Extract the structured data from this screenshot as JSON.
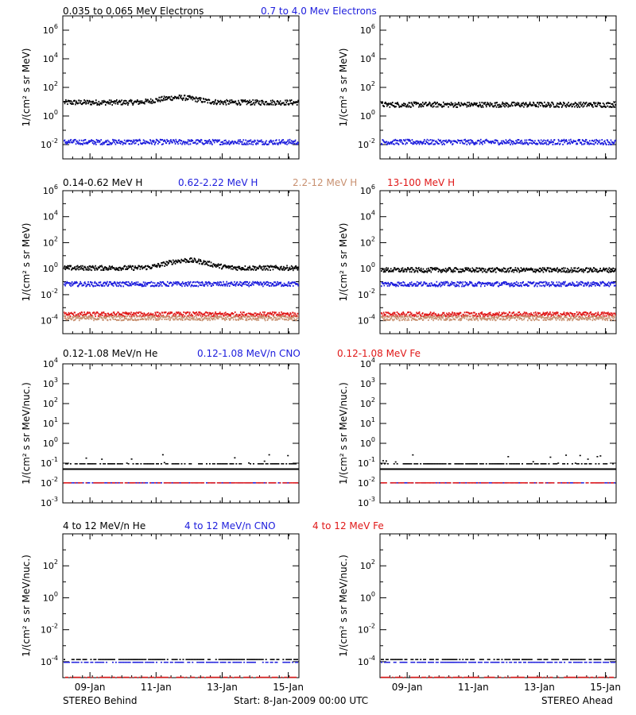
{
  "footer": {
    "left": "STEREO Behind",
    "center": "Start:  8-Jan-2009 00:00 UTC",
    "right": "STEREO Ahead"
  },
  "x_ticks": [
    "09-Jan",
    "11-Jan",
    "13-Jan",
    "15-Jan"
  ],
  "colors": {
    "black": "#000000",
    "blue": "#1c1cdc",
    "tan": "#c89070",
    "red": "#e01818"
  },
  "chart_data": [
    {
      "type": "scatter",
      "row": 1,
      "legend": [
        {
          "label": "0.035 to 0.065 MeV Electrons",
          "color": "#000000"
        },
        {
          "label": "0.7 to 4.0 Mev Electrons",
          "color": "#1c1cdc"
        }
      ],
      "ylabel": "1/(cm² s sr MeV)",
      "y_scale": "log",
      "ylim_exp": [
        -3,
        7
      ],
      "ytick_exponents": [
        -2,
        0,
        2,
        4,
        6
      ],
      "xlim_days": [
        0,
        8
      ],
      "panels": [
        {
          "spacecraft": "STEREO Behind",
          "series": [
            {
              "name": "0.035 to 0.065 MeV Electrons",
              "color": "#000000",
              "level": 10,
              "bump": {
                "center_day": 3.9,
                "peak": 22
              }
            },
            {
              "name": "0.7 to 4.0 Mev Electrons",
              "color": "#1c1cdc",
              "level": 0.017
            }
          ]
        },
        {
          "spacecraft": "STEREO Ahead",
          "series": [
            {
              "name": "0.035 to 0.065 MeV Electrons",
              "color": "#000000",
              "level": 7
            },
            {
              "name": "0.7 to 4.0 Mev Electrons",
              "color": "#1c1cdc",
              "level": 0.017
            }
          ]
        }
      ]
    },
    {
      "type": "scatter",
      "row": 2,
      "legend": [
        {
          "label": "0.14-0.62 MeV H",
          "color": "#000000"
        },
        {
          "label": "0.62-2.22 MeV H",
          "color": "#1c1cdc"
        },
        {
          "label": "2.2-12 MeV H",
          "color": "#c89070"
        },
        {
          "label": "13-100 MeV H",
          "color": "#e01818"
        }
      ],
      "ylabel": "1/(cm² s sr MeV)",
      "y_scale": "log",
      "ylim_exp": [
        -5,
        6
      ],
      "ytick_exponents": [
        -4,
        -2,
        0,
        2,
        4,
        6
      ],
      "xlim_days": [
        0,
        8
      ],
      "panels": [
        {
          "spacecraft": "STEREO Behind",
          "series": [
            {
              "name": "0.14-0.62 MeV H",
              "color": "#000000",
              "level": 1.3,
              "bump": {
                "center_day": 4.2,
                "peak": 5
              }
            },
            {
              "name": "0.62-2.22 MeV H",
              "color": "#1c1cdc",
              "level": 0.075
            },
            {
              "name": "13-100 MeV H",
              "color": "#e01818",
              "level": 0.00035
            },
            {
              "name": "2.2-12 MeV H",
              "color": "#c89070",
              "level": 0.00018
            }
          ]
        },
        {
          "spacecraft": "STEREO Ahead",
          "series": [
            {
              "name": "0.14-0.62 MeV H",
              "color": "#000000",
              "level": 0.9
            },
            {
              "name": "0.62-2.22 MeV H",
              "color": "#1c1cdc",
              "level": 0.075
            },
            {
              "name": "13-100 MeV H",
              "color": "#e01818",
              "level": 0.00035
            },
            {
              "name": "2.2-12 MeV H",
              "color": "#c89070",
              "level": 0.00018
            }
          ]
        }
      ]
    },
    {
      "type": "scatter",
      "row": 3,
      "legend": [
        {
          "label": "0.12-1.08 MeV/n He",
          "color": "#000000"
        },
        {
          "label": "0.12-1.08 MeV/n CNO",
          "color": "#1c1cdc"
        },
        {
          "label": "0.12-1.08 MeV Fe",
          "color": "#e01818"
        }
      ],
      "ylabel": "1/(cm² s sr MeV/nuc.)",
      "y_scale": "log",
      "ylim_exp": [
        -3,
        4
      ],
      "ytick_exponents": [
        -3,
        -2,
        -1,
        0,
        1,
        2,
        3,
        4
      ],
      "xlim_days": [
        0,
        8
      ],
      "panels": [
        {
          "spacecraft": "STEREO Behind",
          "series": [
            {
              "name": "0.12-1.08 MeV/n He",
              "color": "#000000",
              "level": 0.1,
              "solid_line": 0.05
            },
            {
              "name": "0.12-1.08 MeV/n CNO",
              "color": "#1c1cdc",
              "level": 0.011
            },
            {
              "name": "0.12-1.08 MeV Fe",
              "color": "#e01818",
              "level": 0.011
            }
          ]
        },
        {
          "spacecraft": "STEREO Ahead",
          "series": [
            {
              "name": "0.12-1.08 MeV/n He",
              "color": "#000000",
              "level": 0.1,
              "solid_line": 0.05
            },
            {
              "name": "0.12-1.08 MeV/n CNO",
              "color": "#1c1cdc",
              "level": 0.011
            },
            {
              "name": "0.12-1.08 MeV Fe",
              "color": "#e01818",
              "level": 0.011
            }
          ]
        }
      ]
    },
    {
      "type": "scatter",
      "row": 4,
      "legend": [
        {
          "label": "4 to 12 MeV/n He",
          "color": "#000000"
        },
        {
          "label": "4 to 12 MeV/n CNO",
          "color": "#1c1cdc"
        },
        {
          "label": "4 to 12 MeV Fe",
          "color": "#e01818"
        }
      ],
      "ylabel": "1/(cm² s sr MeV/nuc.)",
      "y_scale": "log",
      "ylim_exp": [
        -5,
        4
      ],
      "ytick_exponents": [
        -4,
        -2,
        0,
        2
      ],
      "xlim_days": [
        0,
        8
      ],
      "panels": [
        {
          "spacecraft": "STEREO Behind",
          "series": [
            {
              "name": "4 to 12 MeV/n He",
              "color": "#000000",
              "level": 0.00015
            },
            {
              "name": "4 to 12 MeV/n CNO",
              "color": "#1c1cdc",
              "level": 0.0001
            },
            {
              "name": "4 to 12 MeV Fe",
              "color": "#e01818",
              "level": 1.15e-05
            }
          ]
        },
        {
          "spacecraft": "STEREO Ahead",
          "series": [
            {
              "name": "4 to 12 MeV/n He",
              "color": "#000000",
              "level": 0.00015
            },
            {
              "name": "4 to 12 MeV/n CNO",
              "color": "#1c1cdc",
              "level": 0.0001
            },
            {
              "name": "4 to 12 MeV Fe",
              "color": "#e01818",
              "level": 1.15e-05
            }
          ]
        }
      ]
    }
  ]
}
